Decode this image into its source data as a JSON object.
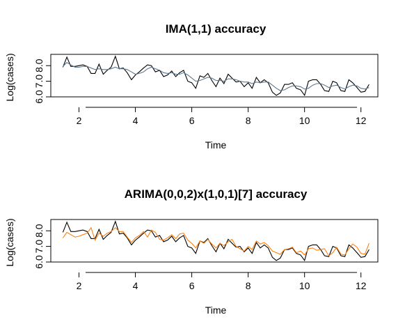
{
  "chart_data": [
    {
      "type": "line",
      "title": "IMA(1,1) accuracy",
      "xlabel": "Time",
      "ylabel": "Log(cases)",
      "xlim": [
        1.0,
        12.6
      ],
      "ylim": [
        6.0,
        8.5
      ],
      "xticks": [
        "2",
        "4",
        "6",
        "8",
        "10",
        "12"
      ],
      "yticks": [
        "6.0",
        "7.0",
        "8.0"
      ],
      "series": [
        {
          "color": "#000000",
          "x": [
            1.43,
            1.57,
            1.71,
            1.86,
            2.0,
            2.14,
            2.29,
            2.43,
            2.57,
            2.71,
            2.86,
            3.0,
            3.14,
            3.29,
            3.43,
            3.57,
            3.71,
            3.86,
            4.0,
            4.14,
            4.29,
            4.43,
            4.57,
            4.71,
            4.86,
            5.0,
            5.14,
            5.29,
            5.43,
            5.57,
            5.71,
            5.86,
            6.0,
            6.14,
            6.29,
            6.43,
            6.57,
            6.71,
            6.86,
            7.0,
            7.14,
            7.29,
            7.43,
            7.57,
            7.71,
            7.86,
            8.0,
            8.14,
            8.29,
            8.43,
            8.57,
            8.71,
            8.86,
            9.0,
            9.14,
            9.29,
            9.43,
            9.57,
            9.71,
            9.86,
            10.0,
            10.14,
            10.29,
            10.43,
            10.57,
            10.71,
            10.86,
            11.0,
            11.14,
            11.29,
            11.43,
            11.57,
            11.71,
            11.86,
            12.0,
            12.14,
            12.29
          ],
          "y": [
            7.9,
            8.55,
            7.95,
            7.95,
            8.0,
            8.05,
            7.95,
            7.5,
            7.5,
            8.1,
            7.45,
            7.7,
            7.9,
            8.6,
            7.8,
            7.85,
            7.55,
            7.1,
            7.4,
            7.6,
            7.85,
            8.05,
            8.0,
            7.6,
            7.7,
            7.3,
            7.4,
            7.65,
            7.3,
            7.55,
            7.7,
            7.0,
            6.9,
            6.55,
            7.35,
            7.25,
            7.5,
            7.05,
            6.65,
            7.2,
            6.85,
            7.45,
            7.2,
            6.95,
            7.0,
            6.65,
            6.9,
            6.55,
            7.25,
            6.9,
            7.1,
            6.9,
            6.3,
            6.1,
            6.25,
            6.8,
            6.8,
            6.9,
            6.55,
            6.45,
            6.1,
            7.0,
            7.1,
            7.1,
            6.8,
            6.4,
            6.35,
            7.0,
            6.9,
            6.4,
            6.35,
            7.1,
            6.9,
            6.6,
            6.3,
            6.35,
            6.8
          ]
        },
        {
          "color": "#5d7890",
          "x": [
            1.43,
            1.57,
            1.71,
            1.86,
            2.0,
            2.14,
            2.29,
            2.43,
            2.57,
            2.71,
            2.86,
            3.0,
            3.14,
            3.29,
            3.43,
            3.57,
            3.71,
            3.86,
            4.0,
            4.14,
            4.29,
            4.43,
            4.57,
            4.71,
            4.86,
            5.0,
            5.14,
            5.29,
            5.43,
            5.57,
            5.71,
            5.86,
            6.0,
            6.14,
            6.29,
            6.43,
            6.57,
            6.71,
            6.86,
            7.0,
            7.14,
            7.29,
            7.43,
            7.57,
            7.71,
            7.86,
            8.0,
            8.14,
            8.29,
            8.43,
            8.57,
            8.71,
            8.86,
            9.0,
            9.14,
            9.29,
            9.43,
            9.57,
            9.71,
            9.86,
            10.0,
            10.14,
            10.29,
            10.43,
            10.57,
            10.71,
            10.86,
            11.0,
            11.14,
            11.29,
            11.43,
            11.57,
            11.71,
            11.86,
            12.0,
            12.14,
            12.29
          ],
          "y": [
            7.95,
            8.2,
            8.05,
            7.9,
            7.9,
            7.95,
            7.95,
            7.85,
            7.75,
            7.8,
            7.75,
            7.75,
            7.8,
            7.9,
            7.8,
            7.8,
            7.75,
            7.6,
            7.45,
            7.5,
            7.6,
            7.8,
            7.9,
            7.8,
            7.7,
            7.55,
            7.5,
            7.55,
            7.45,
            7.45,
            7.55,
            7.4,
            7.2,
            7.0,
            7.05,
            7.15,
            7.25,
            7.2,
            7.05,
            7.05,
            7.0,
            7.15,
            7.15,
            7.1,
            7.0,
            6.95,
            6.95,
            6.85,
            6.95,
            6.9,
            6.95,
            6.95,
            6.75,
            6.55,
            6.4,
            6.45,
            6.6,
            6.7,
            6.7,
            6.65,
            6.5,
            6.55,
            6.75,
            6.85,
            6.85,
            6.75,
            6.6,
            6.7,
            6.75,
            6.6,
            6.5,
            6.65,
            6.75,
            6.7,
            6.55,
            6.5,
            6.6
          ]
        }
      ]
    },
    {
      "type": "line",
      "title": "ARIMA(0,0,2)x(1,0,1)[7] accuracy",
      "xlabel": "Time",
      "ylabel": "Log(cases)",
      "xlim": [
        1.0,
        12.6
      ],
      "ylim": [
        6.0,
        8.5
      ],
      "xticks": [
        "2",
        "4",
        "6",
        "8",
        "10",
        "12"
      ],
      "yticks": [
        "6.0",
        "7.0",
        "8.0"
      ],
      "series": [
        {
          "color": "#000000",
          "x": [
            1.43,
            1.57,
            1.71,
            1.86,
            2.0,
            2.14,
            2.29,
            2.43,
            2.57,
            2.71,
            2.86,
            3.0,
            3.14,
            3.29,
            3.43,
            3.57,
            3.71,
            3.86,
            4.0,
            4.14,
            4.29,
            4.43,
            4.57,
            4.71,
            4.86,
            5.0,
            5.14,
            5.29,
            5.43,
            5.57,
            5.71,
            5.86,
            6.0,
            6.14,
            6.29,
            6.43,
            6.57,
            6.71,
            6.86,
            7.0,
            7.14,
            7.29,
            7.43,
            7.57,
            7.71,
            7.86,
            8.0,
            8.14,
            8.29,
            8.43,
            8.57,
            8.71,
            8.86,
            9.0,
            9.14,
            9.29,
            9.43,
            9.57,
            9.71,
            9.86,
            10.0,
            10.14,
            10.29,
            10.43,
            10.57,
            10.71,
            10.86,
            11.0,
            11.14,
            11.29,
            11.43,
            11.57,
            11.71,
            11.86,
            12.0,
            12.14,
            12.29
          ],
          "y": [
            7.9,
            8.55,
            7.95,
            7.95,
            8.0,
            8.05,
            7.95,
            7.5,
            7.5,
            8.1,
            7.45,
            7.7,
            7.9,
            8.6,
            7.8,
            7.85,
            7.55,
            7.1,
            7.4,
            7.6,
            7.85,
            8.05,
            8.0,
            7.6,
            7.7,
            7.3,
            7.4,
            7.65,
            7.3,
            7.55,
            7.7,
            7.0,
            6.9,
            6.55,
            7.35,
            7.25,
            7.5,
            7.05,
            6.65,
            7.2,
            6.85,
            7.45,
            7.2,
            6.95,
            7.0,
            6.65,
            6.9,
            6.55,
            7.25,
            6.9,
            7.1,
            6.9,
            6.3,
            6.1,
            6.25,
            6.8,
            6.8,
            6.9,
            6.55,
            6.45,
            6.1,
            7.0,
            7.1,
            7.1,
            6.8,
            6.4,
            6.35,
            7.0,
            6.9,
            6.4,
            6.35,
            7.1,
            6.9,
            6.6,
            6.3,
            6.35,
            6.8
          ]
        },
        {
          "color": "#ff7f0e",
          "x": [
            1.43,
            1.57,
            1.71,
            1.86,
            2.0,
            2.14,
            2.29,
            2.43,
            2.57,
            2.71,
            2.86,
            3.0,
            3.14,
            3.29,
            3.43,
            3.57,
            3.71,
            3.86,
            4.0,
            4.14,
            4.29,
            4.43,
            4.57,
            4.71,
            4.86,
            5.0,
            5.14,
            5.29,
            5.43,
            5.57,
            5.71,
            5.86,
            6.0,
            6.14,
            6.29,
            6.43,
            6.57,
            6.71,
            6.86,
            7.0,
            7.14,
            7.29,
            7.43,
            7.57,
            7.71,
            7.86,
            8.0,
            8.14,
            8.29,
            8.43,
            8.57,
            8.71,
            8.86,
            9.0,
            9.14,
            9.29,
            9.43,
            9.57,
            9.71,
            9.86,
            10.0,
            10.14,
            10.29,
            10.43,
            10.57,
            10.71,
            10.86,
            11.0,
            11.14,
            11.29,
            11.43,
            11.57,
            11.71,
            11.86,
            12.0,
            12.14,
            12.29
          ],
          "y": [
            7.55,
            7.9,
            7.75,
            7.6,
            7.65,
            7.75,
            7.85,
            8.2,
            7.4,
            7.85,
            7.65,
            7.85,
            7.95,
            8.2,
            7.95,
            7.95,
            7.6,
            7.25,
            7.55,
            7.7,
            7.95,
            7.6,
            8.05,
            7.9,
            7.45,
            7.4,
            7.55,
            7.75,
            7.5,
            7.8,
            7.85,
            7.4,
            7.2,
            6.9,
            7.35,
            7.2,
            7.45,
            7.15,
            6.9,
            7.2,
            7.05,
            7.3,
            7.45,
            7.0,
            6.85,
            6.7,
            7.0,
            6.8,
            7.35,
            7.15,
            7.25,
            7.05,
            6.7,
            6.6,
            6.5,
            6.8,
            6.85,
            6.95,
            6.6,
            6.7,
            6.45,
            6.85,
            6.9,
            6.75,
            6.8,
            6.85,
            6.4,
            6.6,
            6.95,
            6.5,
            6.45,
            6.85,
            7.15,
            6.95,
            6.55,
            6.5,
            7.2
          ]
        }
      ]
    }
  ]
}
